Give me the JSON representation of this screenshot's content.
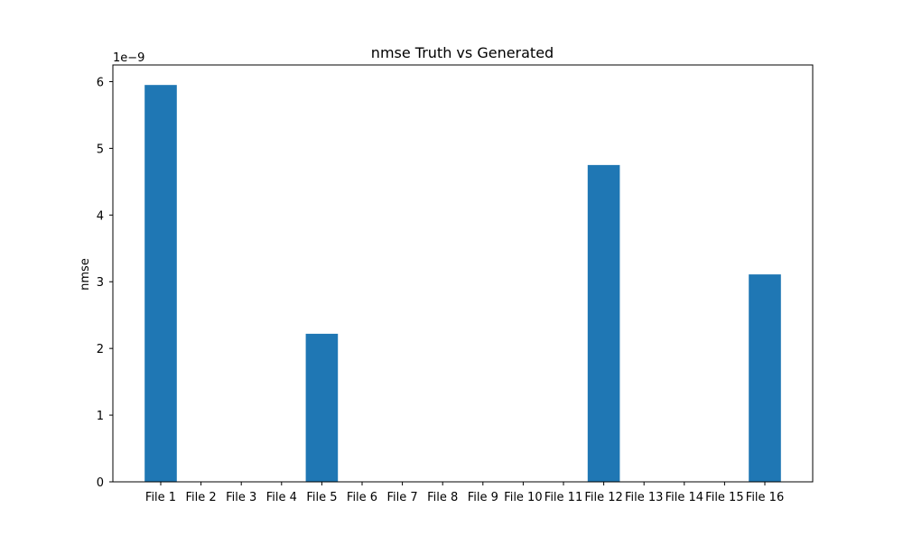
{
  "chart_data": {
    "type": "bar",
    "title": "nmse Truth vs Generated",
    "xlabel": "",
    "ylabel": "nmse",
    "y_scale_label": "1e−9",
    "categories": [
      "File 1",
      "File 2",
      "File 3",
      "File 4",
      "File 5",
      "File 6",
      "File 7",
      "File 8",
      "File 9",
      "File 10",
      "File 11",
      "File 12",
      "File 13",
      "File 14",
      "File 15",
      "File 16"
    ],
    "values": [
      5.95e-09,
      0,
      0,
      0,
      2.22e-09,
      0,
      0,
      0,
      0,
      0,
      0,
      4.75e-09,
      0,
      0,
      0,
      3.11e-09
    ],
    "ylim": [
      0,
      6.25e-09
    ],
    "yticks": [
      0,
      1e-09,
      2e-09,
      3e-09,
      4e-09,
      5e-09,
      6e-09
    ],
    "ytick_labels": [
      "0",
      "1",
      "2",
      "3",
      "4",
      "5",
      "6"
    ],
    "grid": false,
    "bar_color": "#1f77b4"
  }
}
